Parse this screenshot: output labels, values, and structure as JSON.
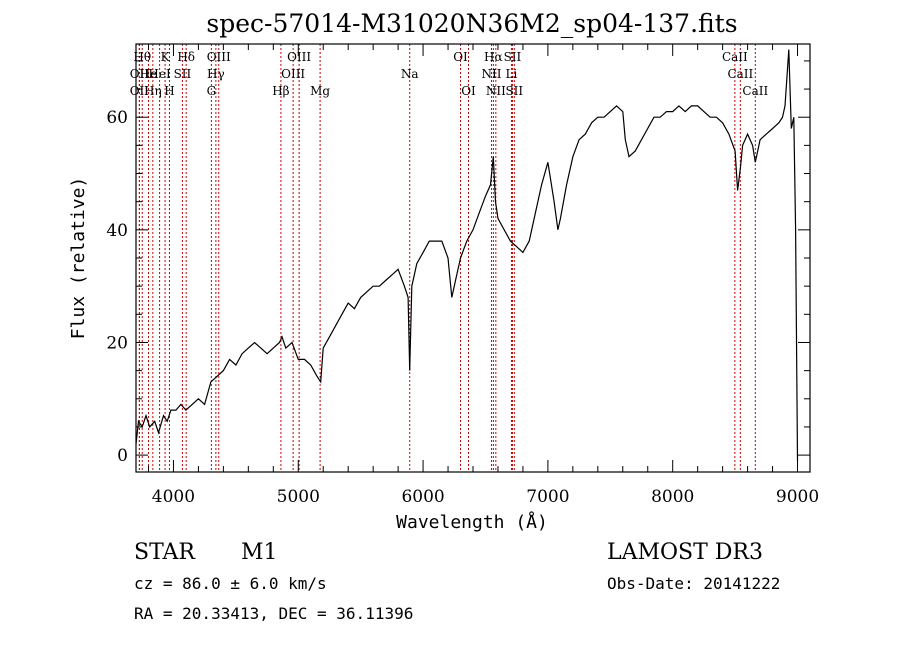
{
  "chart_data": {
    "type": "line",
    "title": "spec-57014-M31020N36M2_sp04-137.fits",
    "xlabel": "Wavelength (Å)",
    "ylabel": "Flux (relative)",
    "xlim": [
      3700,
      9100
    ],
    "ylim": [
      -3,
      73
    ],
    "x_ticks": [
      4000,
      5000,
      6000,
      7000,
      8000,
      9000
    ],
    "y_ticks": [
      0,
      20,
      40,
      60
    ],
    "grid": false,
    "line_color": "#000000",
    "marker_color": "#cc0000",
    "series": [
      {
        "name": "flux",
        "x": [
          3700,
          3720,
          3750,
          3780,
          3810,
          3850,
          3880,
          3920,
          3950,
          3980,
          4020,
          4060,
          4100,
          4150,
          4200,
          4250,
          4300,
          4350,
          4400,
          4450,
          4500,
          4550,
          4600,
          4650,
          4700,
          4750,
          4800,
          4850,
          4870,
          4900,
          4950,
          5000,
          5050,
          5100,
          5150,
          5180,
          5200,
          5250,
          5300,
          5350,
          5400,
          5450,
          5500,
          5550,
          5600,
          5650,
          5700,
          5750,
          5800,
          5850,
          5880,
          5893,
          5910,
          5950,
          6000,
          6050,
          6100,
          6150,
          6200,
          6230,
          6260,
          6300,
          6350,
          6400,
          6450,
          6500,
          6540,
          6563,
          6580,
          6600,
          6650,
          6700,
          6750,
          6800,
          6850,
          6900,
          6950,
          7000,
          7050,
          7080,
          7100,
          7150,
          7200,
          7250,
          7300,
          7350,
          7400,
          7450,
          7500,
          7550,
          7600,
          7620,
          7650,
          7700,
          7750,
          7800,
          7850,
          7900,
          7950,
          8000,
          8050,
          8100,
          8150,
          8200,
          8250,
          8300,
          8350,
          8400,
          8450,
          8500,
          8520,
          8542,
          8560,
          8600,
          8640,
          8662,
          8700,
          8750,
          8800,
          8850,
          8880,
          8900,
          8930,
          8950,
          8970,
          8985,
          9000
        ],
        "values": [
          2,
          6,
          5,
          7,
          5,
          6,
          4,
          7,
          6,
          8,
          8,
          9,
          8,
          9,
          10,
          9,
          13,
          14,
          15,
          17,
          16,
          18,
          19,
          20,
          19,
          18,
          19,
          20,
          21,
          19,
          20,
          17,
          17,
          16,
          14,
          13,
          19,
          21,
          23,
          25,
          27,
          26,
          28,
          29,
          30,
          30,
          31,
          32,
          33,
          30,
          28,
          15,
          30,
          34,
          36,
          38,
          38,
          38,
          35,
          28,
          31,
          35,
          38,
          40,
          43,
          46,
          48,
          53,
          45,
          42,
          40,
          38,
          37,
          36,
          38,
          43,
          48,
          52,
          45,
          40,
          42,
          48,
          53,
          56,
          57,
          59,
          60,
          60,
          61,
          62,
          61,
          56,
          53,
          54,
          56,
          58,
          60,
          60,
          61,
          61,
          62,
          61,
          62,
          62,
          61,
          60,
          60,
          59,
          57,
          54,
          47,
          51,
          55,
          57,
          55,
          52,
          56,
          57,
          58,
          59,
          60,
          62,
          72,
          58,
          60,
          40,
          -1
        ]
      }
    ],
    "spectral_lines": [
      {
        "wavelength": 3750,
        "label": "Hθ",
        "row": 1
      },
      {
        "wavelength": 3727,
        "label": "OII",
        "row": 2
      },
      {
        "wavelength": 3727,
        "label": "OII",
        "row": 3
      },
      {
        "wavelength": 3800,
        "label": "He",
        "row": 2
      },
      {
        "wavelength": 3835,
        "label": "Hη",
        "row": 3
      },
      {
        "wavelength": 3889,
        "label": "HeI",
        "row": 2
      },
      {
        "wavelength": 3933,
        "label": "K",
        "row": 1
      },
      {
        "wavelength": 3968,
        "label": "H",
        "row": 3
      },
      {
        "wavelength": 4072,
        "label": "SII",
        "row": 2
      },
      {
        "wavelength": 4102,
        "label": "Hδ",
        "row": 1
      },
      {
        "wavelength": 4304,
        "label": "G",
        "row": 3
      },
      {
        "wavelength": 4340,
        "label": "Hγ",
        "row": 2
      },
      {
        "wavelength": 4363,
        "label": "OIII",
        "row": 1
      },
      {
        "wavelength": 4861,
        "label": "Hβ",
        "row": 3
      },
      {
        "wavelength": 4959,
        "label": "OIII",
        "row": 2
      },
      {
        "wavelength": 5007,
        "label": "OIII",
        "row": 1
      },
      {
        "wavelength": 5175,
        "label": "Mg",
        "row": 3
      },
      {
        "wavelength": 5893,
        "label": "Na",
        "row": 2
      },
      {
        "wavelength": 6300,
        "label": "OI",
        "row": 1
      },
      {
        "wavelength": 6364,
        "label": "OI",
        "row": 3
      },
      {
        "wavelength": 6548,
        "label": "NII",
        "row": 2
      },
      {
        "wavelength": 6563,
        "label": "Hα",
        "row": 1
      },
      {
        "wavelength": 6583,
        "label": "NII",
        "row": 3
      },
      {
        "wavelength": 6708,
        "label": "Li",
        "row": 2
      },
      {
        "wavelength": 6716,
        "label": "SII",
        "row": 1
      },
      {
        "wavelength": 6731,
        "label": "SII",
        "row": 3
      },
      {
        "wavelength": 8498,
        "label": "CaII",
        "row": 1
      },
      {
        "wavelength": 8542,
        "label": "CaII",
        "row": 2
      },
      {
        "wavelength": 8662,
        "label": "CaII",
        "row": 3
      }
    ]
  },
  "info": {
    "object_class": "STAR",
    "subclass": "M1",
    "survey": "LAMOST DR3",
    "redshift_text": "cz = 86.0 ± 6.0 km/s",
    "obs_date": "Obs-Date: 20141222",
    "coords_text": "RA =  20.33413, DEC =  36.11396"
  }
}
